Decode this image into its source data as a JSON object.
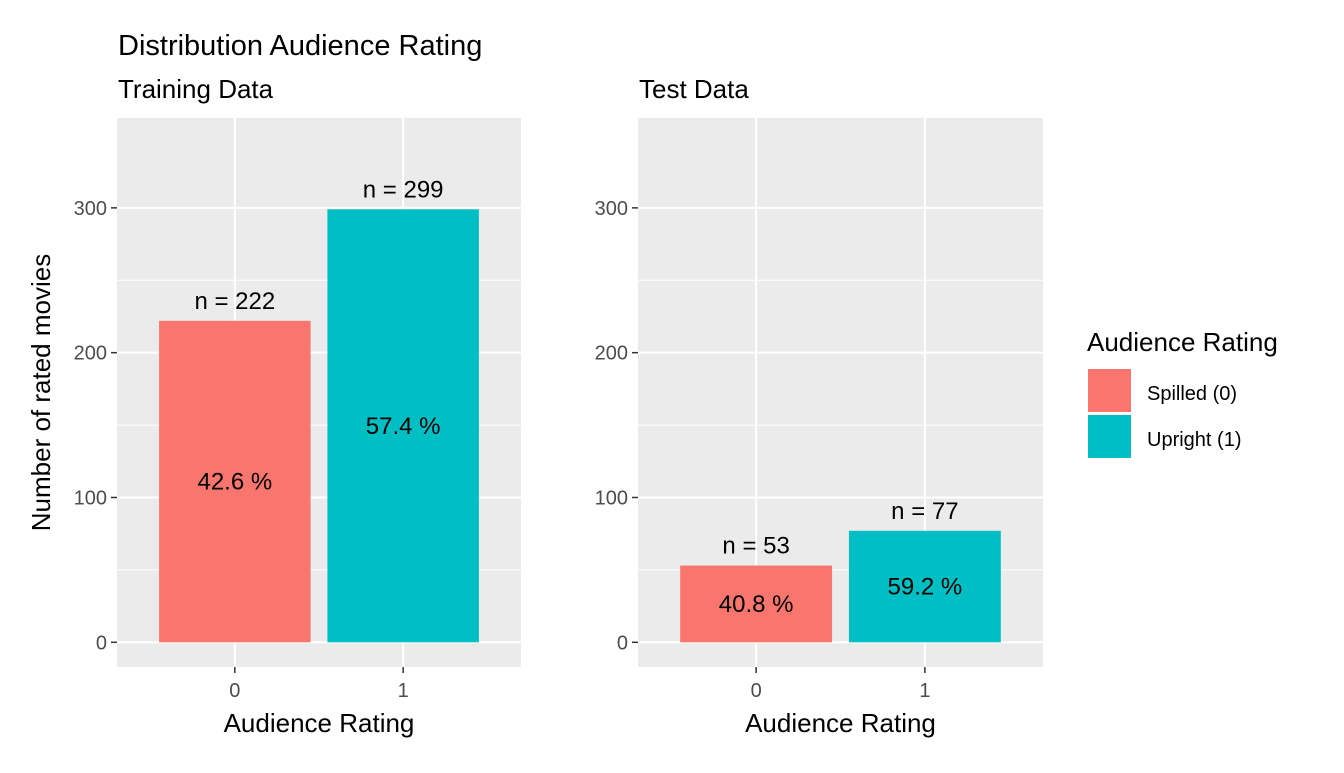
{
  "title": "Distribution Audience Rating",
  "colors": {
    "panel_bg": "#ebebeb",
    "grid_major": "#ffffff",
    "spilled": "#f8766d",
    "upright": "#00bfc4",
    "tick_text": "#4d4d4d",
    "tick_mark": "#333333"
  },
  "legend": {
    "title": "Audience Rating",
    "placement": "right",
    "items": [
      {
        "label": "Spilled (0)",
        "color": "#f8766d"
      },
      {
        "label": "Upright (1)",
        "color": "#00bfc4"
      }
    ]
  },
  "chart_data": [
    {
      "type": "bar",
      "subtitle": "Training Data",
      "xlabel": "Audience Rating",
      "ylabel": "Number of rated movies",
      "categories": [
        "0",
        "1"
      ],
      "values": [
        222,
        299
      ],
      "count_labels": [
        "n =  222",
        "n =  299"
      ],
      "percent_labels": [
        "42.6 %",
        "57.4 %"
      ],
      "ylim": [
        0,
        345
      ],
      "yticks": [
        0,
        100,
        200,
        300
      ],
      "grid": true
    },
    {
      "type": "bar",
      "subtitle": "Test Data",
      "xlabel": "Audience Rating",
      "ylabel": "",
      "categories": [
        "0",
        "1"
      ],
      "values": [
        53,
        77
      ],
      "count_labels": [
        "n =  53",
        "n =  77"
      ],
      "percent_labels": [
        "40.8 %",
        "59.2 %"
      ],
      "ylim": [
        0,
        345
      ],
      "yticks": [
        0,
        100,
        200,
        300
      ],
      "grid": true
    }
  ]
}
